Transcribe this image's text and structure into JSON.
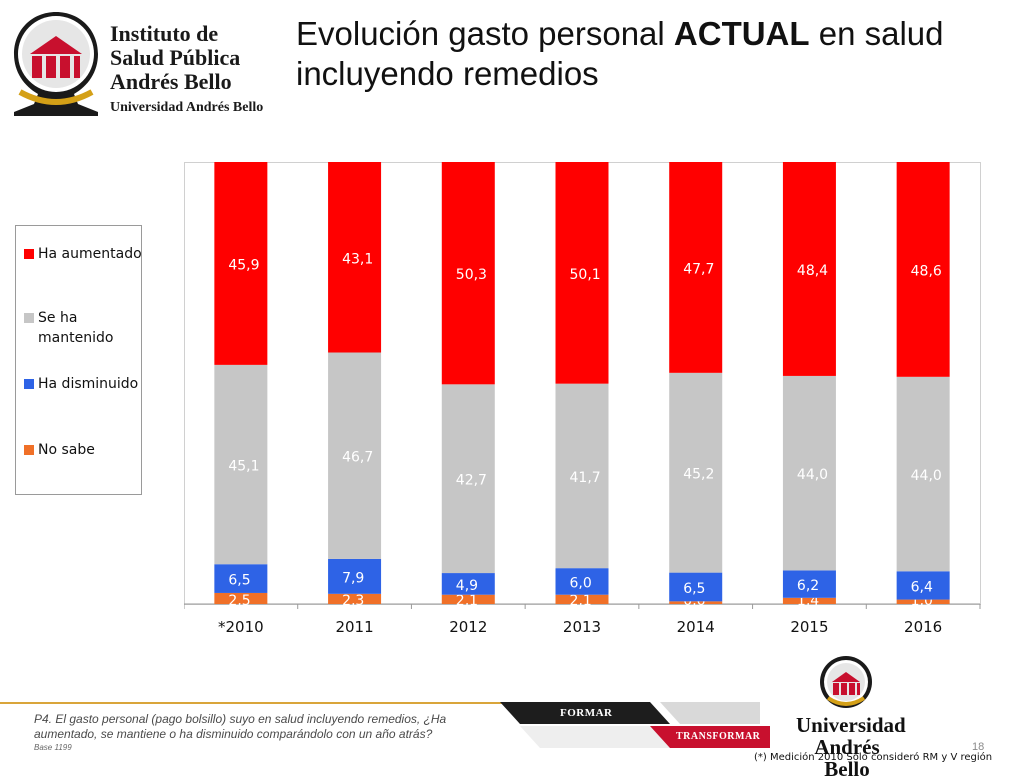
{
  "header": {
    "logo": {
      "line1": "Instituto de",
      "line2": "Salud Pública",
      "line3": "Andrés Bello",
      "line4": "Universidad Andrés Bello"
    },
    "title_part1": "Evolución gasto personal ",
    "title_bold": "ACTUAL",
    "title_part2": " en salud incluyendo remedios"
  },
  "legend": [
    {
      "label": "Ha aumentado",
      "color": "#ff0000"
    },
    {
      "label": "Se ha mantenido",
      "color": "#c6c6c6"
    },
    {
      "label": "Ha disminuido",
      "color": "#2e63e6"
    },
    {
      "label": "No sabe",
      "color": "#f07028"
    }
  ],
  "chart_data": {
    "type": "bar",
    "stacked": true,
    "percent_stacked": true,
    "categories": [
      "*2010",
      "2011",
      "2012",
      "2013",
      "2014",
      "2015",
      "2016"
    ],
    "series": [
      {
        "name": "No sabe",
        "color": "#f07028",
        "values": [
          2.5,
          2.3,
          2.1,
          2.1,
          0.6,
          1.4,
          1.0
        ],
        "labels": [
          "2,5",
          "2,3",
          "2,1",
          "2,1",
          "0,6",
          "1,4",
          "1,0"
        ]
      },
      {
        "name": "Ha disminuido",
        "color": "#2e63e6",
        "values": [
          6.5,
          7.9,
          4.9,
          6.0,
          6.5,
          6.2,
          6.4
        ],
        "labels": [
          "6,5",
          "7,9",
          "4,9",
          "6,0",
          "6,5",
          "6,2",
          "6,4"
        ]
      },
      {
        "name": "Se ha mantenido",
        "color": "#c6c6c6",
        "values": [
          45.1,
          46.7,
          42.7,
          41.7,
          45.2,
          44.0,
          44.0
        ],
        "labels": [
          "45,1",
          "46,7",
          "42,7",
          "41,7",
          "45,2",
          "44,0",
          "44,0"
        ]
      },
      {
        "name": "Ha aumentado",
        "color": "#ff0000",
        "values": [
          45.9,
          43.1,
          50.3,
          50.1,
          47.7,
          48.4,
          48.6
        ],
        "labels": [
          "45,9",
          "43,1",
          "50,3",
          "50,1",
          "47,7",
          "48,4",
          "48,6"
        ]
      }
    ],
    "ylim": [
      0,
      100
    ],
    "legend_position": "left",
    "grid": false
  },
  "footer": {
    "question": "P4. El gasto personal (pago bolsillo) suyo en salud incluyendo remedios, ¿Ha aumentado, se mantiene o ha disminuido comparándolo con un año atrás?",
    "base": "Base 1199",
    "tab_formar": "FORMAR",
    "tab_transformar": "TRANSFORMAR",
    "university_line1": "Universidad",
    "university_line2": "Andrés Bello",
    "page_number": "18",
    "measurement_note": "(*) Medición 2010 Sólo consideró RM y V región"
  }
}
